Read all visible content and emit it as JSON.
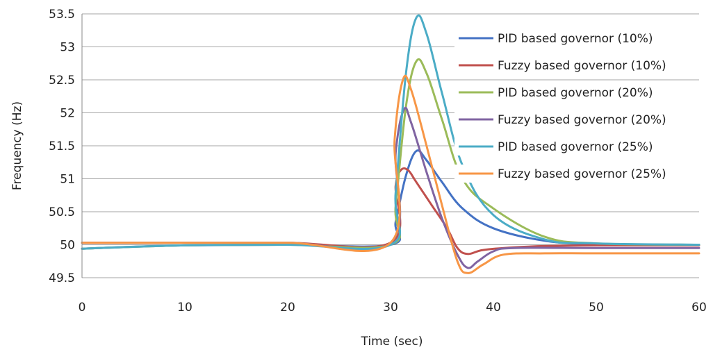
{
  "chart_data": {
    "type": "line",
    "title": "",
    "xlabel": "Time (sec)",
    "ylabel": "Frequency (Hz)",
    "xlim": [
      0,
      60
    ],
    "ylim": [
      49.5,
      53.5
    ],
    "xticks": [
      "0",
      "10",
      "20",
      "30",
      "40",
      "50",
      "60"
    ],
    "yticks": [
      "49.5",
      "50",
      "50.5",
      "51",
      "51.5",
      "52",
      "52.5",
      "53",
      "53.5"
    ],
    "grid": "horizontal",
    "legend_position": "right",
    "series": [
      {
        "name": "PID based governor (10%)",
        "color": "#4472C4",
        "points": [
          [
            0,
            49.94
          ],
          [
            5,
            49.97
          ],
          [
            10,
            49.99
          ],
          [
            20,
            50.0
          ],
          [
            30,
            50.0
          ],
          [
            30.5,
            50.35
          ],
          [
            31.5,
            51.05
          ],
          [
            32.5,
            51.42
          ],
          [
            33.5,
            51.28
          ],
          [
            35,
            50.95
          ],
          [
            37,
            50.55
          ],
          [
            40,
            50.25
          ],
          [
            45,
            50.06
          ],
          [
            50,
            50.01
          ],
          [
            60,
            50.0
          ]
        ]
      },
      {
        "name": "Fuzzy based governor (10%)",
        "color": "#C0504D",
        "points": [
          [
            0,
            50.03
          ],
          [
            10,
            50.03
          ],
          [
            20,
            50.03
          ],
          [
            30,
            50.03
          ],
          [
            30.5,
            50.9
          ],
          [
            31,
            51.13
          ],
          [
            31.7,
            51.13
          ],
          [
            32.5,
            50.95
          ],
          [
            34,
            50.6
          ],
          [
            35.5,
            50.25
          ],
          [
            36.5,
            49.95
          ],
          [
            37.5,
            49.86
          ],
          [
            39,
            49.92
          ],
          [
            42,
            49.96
          ],
          [
            45,
            49.98
          ],
          [
            50,
            49.99
          ],
          [
            60,
            49.99
          ]
        ]
      },
      {
        "name": "PID based governor (20%)",
        "color": "#9BBB59",
        "points": [
          [
            0,
            49.94
          ],
          [
            10,
            49.99
          ],
          [
            20,
            50.0
          ],
          [
            30,
            50.0
          ],
          [
            30.5,
            50.6
          ],
          [
            31.5,
            52.1
          ],
          [
            32.5,
            52.78
          ],
          [
            33.5,
            52.6
          ],
          [
            35,
            51.9
          ],
          [
            37,
            51.0
          ],
          [
            40,
            50.55
          ],
          [
            45,
            50.12
          ],
          [
            50,
            50.02
          ],
          [
            60,
            50.0
          ]
        ]
      },
      {
        "name": "Fuzzy based governor (20%)",
        "color": "#8064A2",
        "points": [
          [
            0,
            50.03
          ],
          [
            10,
            50.03
          ],
          [
            20,
            50.03
          ],
          [
            30,
            50.03
          ],
          [
            30.5,
            51.4
          ],
          [
            31.3,
            52.05
          ],
          [
            32,
            51.85
          ],
          [
            33.5,
            51.1
          ],
          [
            35,
            50.4
          ],
          [
            36.5,
            49.85
          ],
          [
            37.5,
            49.65
          ],
          [
            38.5,
            49.75
          ],
          [
            40,
            49.9
          ],
          [
            42,
            49.95
          ],
          [
            50,
            49.95
          ],
          [
            60,
            49.95
          ]
        ]
      },
      {
        "name": "PID based governor (25%)",
        "color": "#4BACC6",
        "points": [
          [
            0,
            49.94
          ],
          [
            10,
            49.99
          ],
          [
            20,
            50.0
          ],
          [
            30,
            50.0
          ],
          [
            30.5,
            50.8
          ],
          [
            31.5,
            52.6
          ],
          [
            32.5,
            53.44
          ],
          [
            33.5,
            53.2
          ],
          [
            35,
            52.3
          ],
          [
            37,
            51.2
          ],
          [
            40,
            50.45
          ],
          [
            45,
            50.08
          ],
          [
            50,
            50.02
          ],
          [
            60,
            50.0
          ]
        ]
      },
      {
        "name": "Fuzzy based governor (25%)",
        "color": "#F79646",
        "points": [
          [
            0,
            50.03
          ],
          [
            10,
            50.03
          ],
          [
            20,
            50.03
          ],
          [
            30,
            50.03
          ],
          [
            30.4,
            51.6
          ],
          [
            31.2,
            52.5
          ],
          [
            32,
            52.35
          ],
          [
            33.5,
            51.5
          ],
          [
            35,
            50.6
          ],
          [
            36.5,
            49.75
          ],
          [
            37.5,
            49.57
          ],
          [
            39,
            49.7
          ],
          [
            41,
            49.85
          ],
          [
            45,
            49.87
          ],
          [
            50,
            49.87
          ],
          [
            60,
            49.87
          ]
        ]
      }
    ]
  }
}
